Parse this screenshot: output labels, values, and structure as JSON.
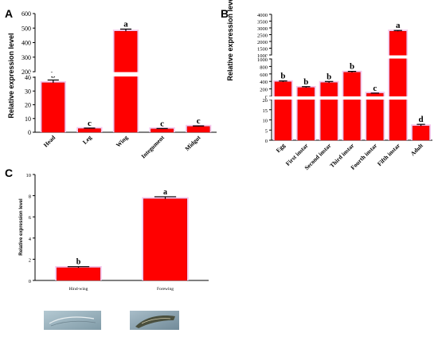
{
  "chart_data": [
    {
      "panel": "A",
      "type": "bar",
      "ylabel": "Relative expression level",
      "categories": [
        "Head",
        "Leg",
        "Wing",
        "Integument",
        "Midgut"
      ],
      "values": [
        36,
        2.6,
        478,
        2.4,
        4.2
      ],
      "errors": [
        2,
        0.4,
        15,
        0.3,
        0.4
      ],
      "letters": [
        "b",
        "c",
        "a",
        "c",
        "c"
      ],
      "axis_break": {
        "lower": [
          0,
          40
        ],
        "upper": [
          200,
          600
        ]
      },
      "ticks_lower": [
        "0",
        "10",
        "20",
        "30",
        "40"
      ],
      "ticks_upper": [
        "200",
        "300",
        "400",
        "500",
        "600"
      ]
    },
    {
      "panel": "B",
      "type": "bar",
      "ylabel": "Relative expression level",
      "categories": [
        "Egg",
        "First instar",
        "Second instar",
        "Third instar",
        "Fourth instar",
        "Fifth instar",
        "Adult"
      ],
      "values": [
        400,
        250,
        380,
        650,
        100,
        2750,
        7
      ],
      "errors": [
        25,
        25,
        30,
        25,
        5,
        60,
        0.8
      ],
      "letters": [
        "b",
        "b",
        "b",
        "b",
        "c",
        "a",
        "d"
      ],
      "axis_break": {
        "lower": [
          0,
          20
        ],
        "middle": [
          0,
          1000
        ],
        "upper": [
          1000,
          4000
        ]
      },
      "ticks_lower": [
        "0",
        "5",
        "10",
        "15",
        "20"
      ],
      "ticks_middle": [
        "0",
        "200",
        "400",
        "600",
        "800",
        "1000"
      ],
      "ticks_upper": [
        "1000",
        "1500",
        "2000",
        "2500",
        "3000",
        "3500",
        "4000"
      ]
    },
    {
      "panel": "C",
      "type": "bar",
      "ylabel": "Relative expression level",
      "categories": [
        "Hind-wing",
        "Forewing"
      ],
      "values": [
        1.2,
        7.7
      ],
      "errors": [
        0.1,
        0.2
      ],
      "letters": [
        "b",
        "a"
      ],
      "ylim": [
        0,
        10
      ],
      "ticks": [
        "0",
        "2",
        "4",
        "6",
        "8",
        "10"
      ]
    }
  ],
  "colors": {
    "bar": "#ff0000",
    "halo": "#f4c6ec"
  }
}
